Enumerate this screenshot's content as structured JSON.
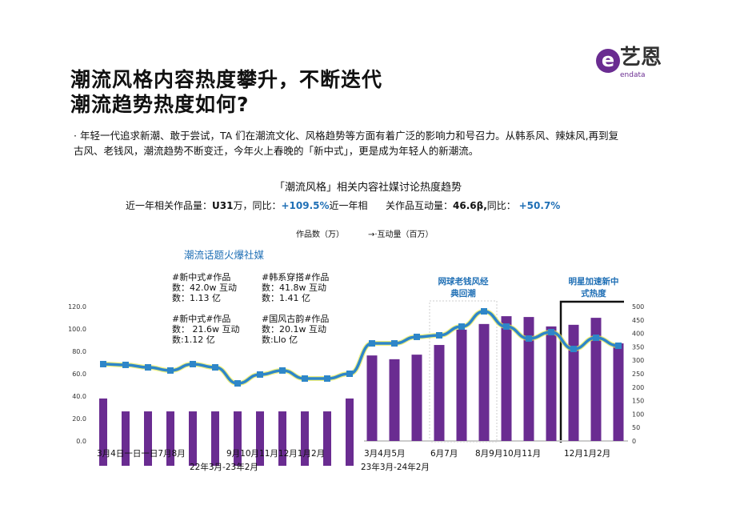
{
  "logo": {
    "text": "艺恩",
    "sub": "endata",
    "color": "#6a2c91"
  },
  "title_lines": [
    "潮流风格内容热度攀升，不断迭代",
    "潮流趋势热度如何?"
  ],
  "paragraph": "· 年轻一代追求新潮、敢于尝试，TA 们在潮流文化、风格趋势等方面有着广泛的影响力和号召力。从韩系风、辣妹风,再到复古风、老钱风，潮流趋势不断变迁，今年火上春晚的「新中式」，更是成为年轻人的新潮流。",
  "stats": {
    "left_label": "近一年相关作品量：",
    "left_value": "U31",
    "left_unit": "万，同比：",
    "left_yoy": "+109.5%",
    "left_tail": "近一年相",
    "right_label": "关作品互动量：",
    "right_value": "46.6β,",
    "right_unit": "同比：",
    "right_yoy": "+50.7%"
  },
  "chart_data": {
    "type": "bar+line",
    "title": "「潮流风格」相关内容社媒讨论热度趋势",
    "legend": [
      {
        "name": "作品数（万）",
        "marker": "bar"
      },
      {
        "name": "→·互动量（百万）",
        "marker": "line"
      }
    ],
    "legend_placement": "top",
    "left_axis": {
      "ticks": [
        "0.0",
        "20.0",
        "40.0",
        "60.0",
        "80.0",
        "100.0",
        "120.0"
      ],
      "range": [
        0,
        120
      ]
    },
    "right_axis": {
      "ticks": [
        "0",
        "50",
        "100",
        "150",
        "200",
        "250",
        "300",
        "350",
        "400",
        "450",
        "500"
      ],
      "range": [
        0,
        500
      ]
    },
    "bars_right_axis": [
      158,
      110,
      110,
      110,
      110,
      110,
      110,
      110,
      110,
      110,
      110,
      158,
      318,
      304,
      321,
      357,
      414,
      435,
      464,
      461,
      426,
      432,
      458,
      363
    ],
    "line_left_axis": [
      68.6,
      67.9,
      65.7,
      62.9,
      68.6,
      65.7,
      51.4,
      59.3,
      62.9,
      55.7,
      55.7,
      60.0,
      87.1,
      87.1,
      92.9,
      94.3,
      102.1,
      115.7,
      102.1,
      91.4,
      97.1,
      82.1,
      92.1,
      85.0
    ],
    "x_labels": [
      "3月4日一日一日7月8月",
      "9月10月11月12月1月2月",
      "3月4月5月",
      "6月7月",
      "8月9月10月11月",
      "12月1月2月"
    ],
    "period_labels": [
      "22年3月-23年2月",
      "23年3月-24年2月"
    ],
    "bar_color": "#6a2c91",
    "line_color": "#2e86c8",
    "annotations": {
      "section_title": "潮流话题火爆社媒",
      "notes": [
        [
          "#新中式#作品",
          "数：42.0w 互动",
          "数：1.13 亿"
        ],
        [
          "#韩系穿搭#作品",
          "数：41.8w 互动",
          "数：1.41 亿"
        ],
        [
          "#新中式#作品",
          "数： 21.6w 互动",
          "数:1.12 亿"
        ],
        [
          "#国风古韵#作品",
          "数：20.1w 互动",
          "数:Llo 亿"
        ]
      ],
      "highlight1": [
        "网球老钱风经",
        "典回潮"
      ],
      "highlight2": [
        "明星加速新中",
        "式热度"
      ]
    }
  }
}
